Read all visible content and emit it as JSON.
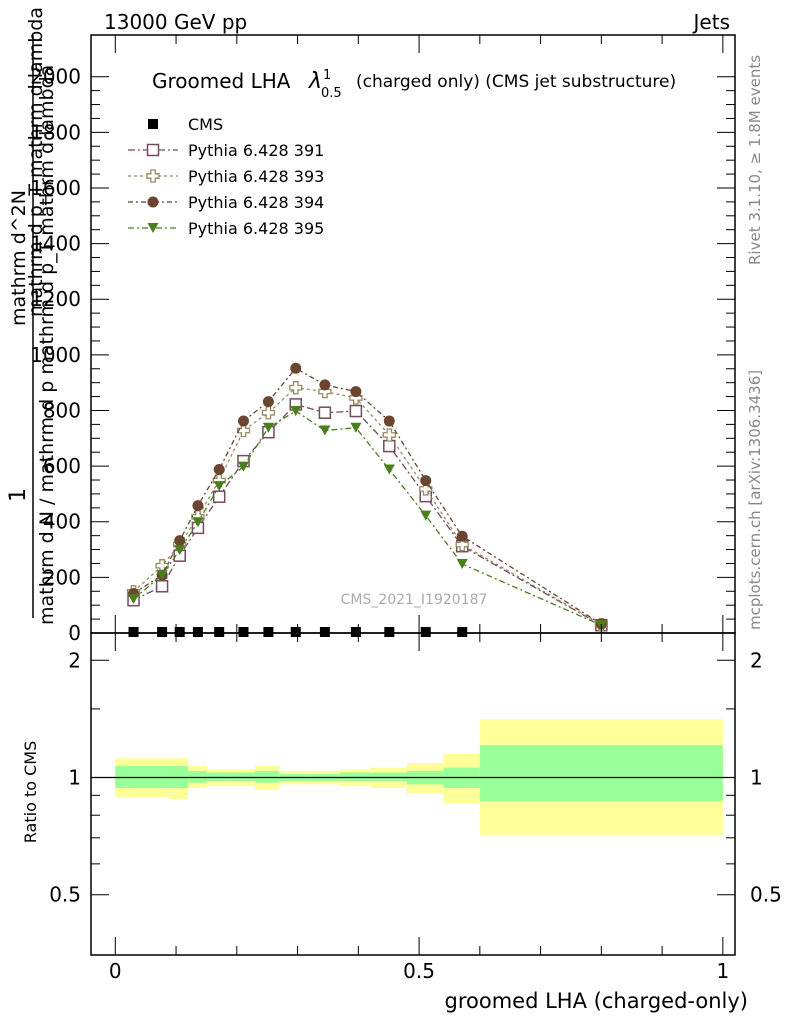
{
  "header": {
    "energy": "13000 GeV pp",
    "process": "Jets"
  },
  "side_labels": {
    "rivet": "Rivet 3.1.10, ≥ 1.8M events",
    "mcplots": "mcplots.cern.ch [arXiv:1306.3436]"
  },
  "watermark": "CMS_2021_I1920187",
  "title": {
    "main": "Groomed LHA",
    "lambda": "λ",
    "superscript": "1",
    "subscript": "0.5",
    "suffix": "(charged only) (CMS jet substructure)"
  },
  "ylabel_upper": {
    "numerator": "1",
    "denominator": "mathrm d N / mathrm d p mathrm d p_T mathrm d lambda",
    "fraction_top": "mathrm d^2N",
    "fraction_bottom": "mathrm d p_T mathrm d lambda"
  },
  "ylabel_ratio": "Ratio to CMS",
  "xlabel": "groomed LHA (charged-only)",
  "legend": [
    {
      "name": "CMS",
      "color": "#000000",
      "marker": "square-filled"
    },
    {
      "name": "Pythia 6.428 391",
      "color": "#734a5e",
      "marker": "square-open"
    },
    {
      "name": "Pythia 6.428 393",
      "color": "#968b62",
      "marker": "cross-open"
    },
    {
      "name": "Pythia 6.428 394",
      "color": "#6b4530",
      "marker": "circle-filled"
    },
    {
      "name": "Pythia 6.428 395",
      "color": "#4a7f1e",
      "marker": "triangle-down"
    }
  ],
  "chart_data": {
    "type": "line",
    "xlim": [
      -0.04,
      1.02
    ],
    "upper_ylim": [
      0,
      2150
    ],
    "ratio_ylim": [
      0.35,
      2.35
    ],
    "ratio_log_scale": true,
    "upper_yticks": [
      0,
      200,
      400,
      600,
      800,
      1000,
      1200,
      1400,
      1600,
      1800,
      2000
    ],
    "ratio_yticks": [
      0.5,
      1,
      2
    ],
    "xticks": [
      0,
      0.5,
      1
    ],
    "xtick_labels": [
      "0",
      "0.5",
      "1"
    ],
    "x": [
      0.03,
      0.077,
      0.106,
      0.136,
      0.171,
      0.211,
      0.252,
      0.297,
      0.345,
      0.396,
      0.451,
      0.511,
      0.571,
      0.8
    ],
    "cms_values": [
      0,
      0,
      0,
      0,
      0,
      0,
      0,
      0,
      0,
      0,
      0,
      0,
      0,
      null
    ],
    "series": [
      {
        "name": "Pythia 6.428 391",
        "values": [
          118,
          168,
          278,
          378,
          490,
          618,
          722,
          822,
          792,
          798,
          672,
          492,
          312,
          28
        ]
      },
      {
        "name": "Pythia 6.428 393",
        "values": [
          148,
          242,
          318,
          418,
          548,
          728,
          792,
          882,
          868,
          845,
          712,
          518,
          318,
          30
        ]
      },
      {
        "name": "Pythia 6.428 394",
        "values": [
          142,
          208,
          332,
          458,
          588,
          762,
          832,
          952,
          892,
          868,
          762,
          548,
          348,
          32
        ]
      },
      {
        "name": "Pythia 6.428 395",
        "values": [
          122,
          208,
          298,
          398,
          528,
          598,
          738,
          798,
          728,
          738,
          588,
          422,
          248,
          28
        ]
      }
    ],
    "ratio_bands": {
      "bin_edges": [
        0.0,
        0.09,
        0.12,
        0.15,
        0.19,
        0.23,
        0.27,
        0.32,
        0.37,
        0.42,
        0.48,
        0.54,
        0.6,
        1.0
      ],
      "inner_up": [
        1.07,
        1.07,
        1.04,
        1.03,
        1.03,
        1.04,
        1.02,
        1.02,
        1.03,
        1.03,
        1.04,
        1.06,
        1.21
      ],
      "inner_down": [
        0.94,
        0.94,
        0.97,
        0.98,
        0.98,
        0.97,
        0.98,
        0.98,
        0.98,
        0.98,
        0.96,
        0.94,
        0.87
      ],
      "outer_up": [
        1.12,
        1.12,
        1.07,
        1.05,
        1.05,
        1.07,
        1.04,
        1.04,
        1.05,
        1.06,
        1.09,
        1.15,
        1.41
      ],
      "outer_down": [
        0.89,
        0.88,
        0.94,
        0.95,
        0.95,
        0.93,
        0.96,
        0.96,
        0.95,
        0.94,
        0.91,
        0.86,
        0.71
      ]
    },
    "colors": {
      "inner_band": "#99ff99",
      "outer_band": "#ffff99"
    }
  }
}
